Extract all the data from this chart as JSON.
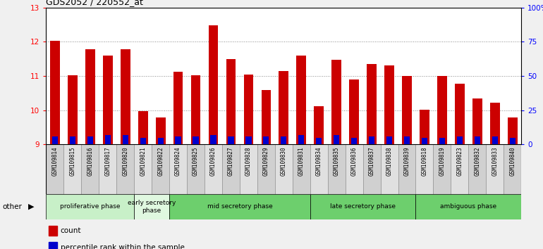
{
  "title": "GDS2052 / 220552_at",
  "samples": [
    "GSM109814",
    "GSM109815",
    "GSM109816",
    "GSM109817",
    "GSM109820",
    "GSM109821",
    "GSM109822",
    "GSM109824",
    "GSM109825",
    "GSM109826",
    "GSM109827",
    "GSM109828",
    "GSM109829",
    "GSM109830",
    "GSM109831",
    "GSM109834",
    "GSM109835",
    "GSM109836",
    "GSM109837",
    "GSM109838",
    "GSM109839",
    "GSM109818",
    "GSM109819",
    "GSM109823",
    "GSM109832",
    "GSM109833",
    "GSM109840"
  ],
  "count_values": [
    12.02,
    11.01,
    11.78,
    11.59,
    11.77,
    9.97,
    9.78,
    11.12,
    11.02,
    12.48,
    11.5,
    11.05,
    10.59,
    11.15,
    11.59,
    10.12,
    11.48,
    10.89,
    11.35,
    11.3,
    11.0,
    10.02,
    10.99,
    10.78,
    10.35,
    10.22,
    9.78
  ],
  "percentile_values": [
    6,
    6,
    6,
    7,
    7,
    5,
    5,
    6,
    6,
    7,
    6,
    6,
    6,
    6,
    7,
    5,
    7,
    5,
    6,
    6,
    6,
    5,
    5,
    6,
    6,
    6,
    5
  ],
  "phases": [
    {
      "label": "proliferative phase",
      "start": 0,
      "end": 5,
      "color": "#c8f0c8"
    },
    {
      "label": "early secretory\nphase",
      "start": 5,
      "end": 7,
      "color": "#e0f8e0"
    },
    {
      "label": "mid secretory phase",
      "start": 7,
      "end": 15,
      "color": "#6dcf6d"
    },
    {
      "label": "late secretory phase",
      "start": 15,
      "end": 21,
      "color": "#6dcf6d"
    },
    {
      "label": "ambiguous phase",
      "start": 21,
      "end": 27,
      "color": "#6dcf6d"
    }
  ],
  "ylim_left": [
    9,
    13
  ],
  "ylim_right": [
    0,
    100
  ],
  "yticks_left": [
    9,
    10,
    11,
    12,
    13
  ],
  "yticks_right": [
    0,
    25,
    50,
    75,
    100
  ],
  "ytick_labels_right": [
    "0",
    "25",
    "50",
    "75",
    "100%"
  ],
  "bar_color_red": "#cc0000",
  "bar_color_blue": "#0000cc",
  "bg_color": "#f0f0f0",
  "plot_bg_color": "#ffffff",
  "baseline": 9,
  "bar_width": 0.55
}
